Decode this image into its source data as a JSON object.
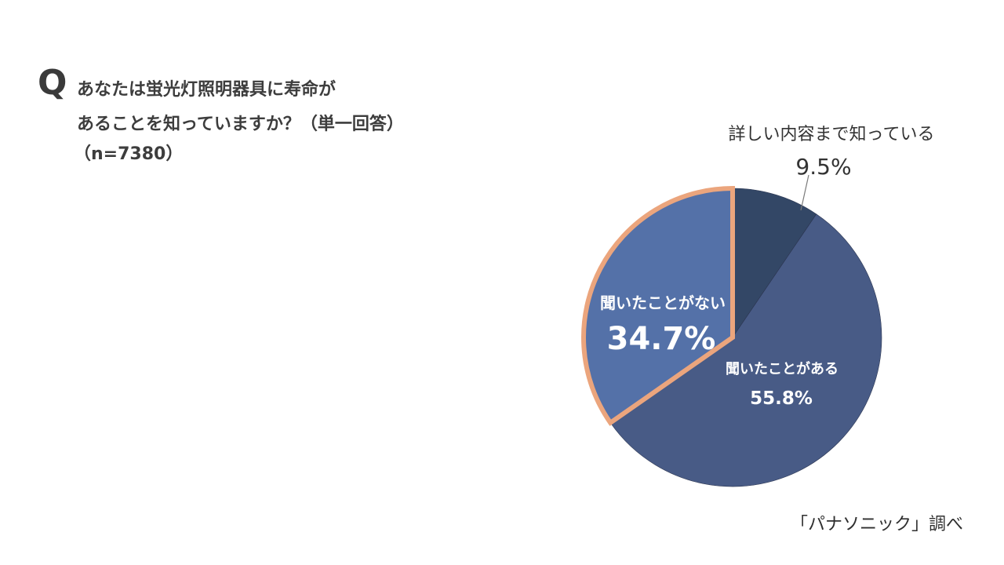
{
  "question": {
    "mark": "Q",
    "line1": "あなたは蛍光灯照明器具に寿命が",
    "line2": "あることを知っていますか？（単一回答）",
    "line3": "（n=7380）"
  },
  "source": "「パナソニック」調べ",
  "chart_data": {
    "type": "pie",
    "start": "12 o'clock, clockwise",
    "highlighted_slice": "聞いたことがない",
    "slices": [
      {
        "label": "詳しい内容まで知っている",
        "value": 9.5,
        "value_label": "9.5%",
        "color": "#334766"
      },
      {
        "label": "聞いたことがある",
        "value": 55.8,
        "value_label": "55.8%",
        "color": "#485b86"
      },
      {
        "label": "聞いたことがない",
        "value": 34.7,
        "value_label": "34.7%",
        "color": "#5471a8",
        "outline": "#eba57d"
      }
    ]
  }
}
